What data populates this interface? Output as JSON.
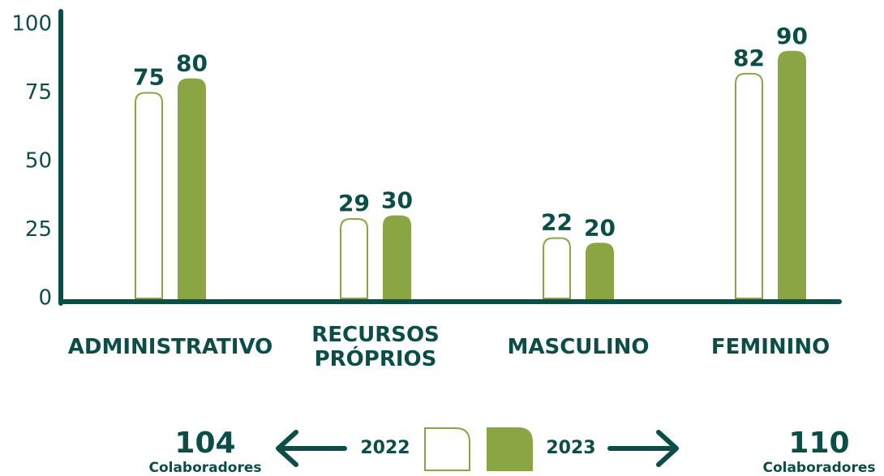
{
  "chart_data": {
    "type": "bar",
    "categories": [
      "ADMINISTRATIVO",
      "RECURSOS\nPRÓPRIOS",
      "MASCULINO",
      "FEMININO"
    ],
    "series": [
      {
        "name": "2022",
        "color": "#8aa644",
        "fill": "none",
        "values": [
          75,
          29,
          22,
          82
        ]
      },
      {
        "name": "2023",
        "color": "#8aa644",
        "fill": "#8aa644",
        "values": [
          80,
          30,
          20,
          90
        ]
      }
    ],
    "ylim": [
      0,
      100
    ],
    "yticks": [
      0,
      25,
      50,
      75,
      100
    ],
    "totals": [
      104,
      110
    ],
    "totals_label": "Colaboradores"
  }
}
